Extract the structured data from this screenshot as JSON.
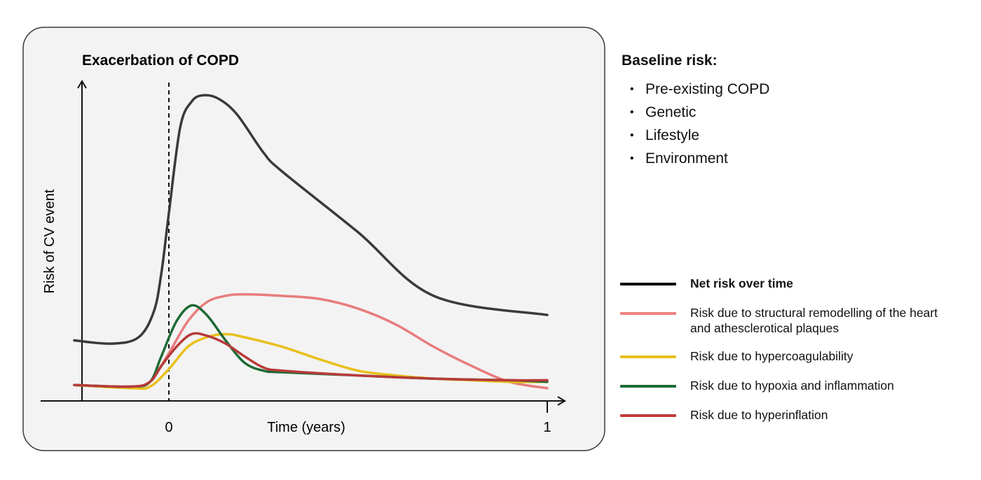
{
  "chart_data": {
    "type": "line",
    "title": "Exacerbation of COPD",
    "xlabel": "Time (years)",
    "ylabel": "Risk of CV event",
    "x_ticks": [
      "0",
      "1"
    ],
    "xlim": [
      -0.25,
      1.0
    ],
    "ylim": [
      0,
      1
    ],
    "event_marker": {
      "x": 0,
      "style": "dashed"
    },
    "series": [
      {
        "name": "Net risk over time",
        "color": "#3a3a3a",
        "points": [
          [
            -0.25,
            0.19
          ],
          [
            -0.15,
            0.18
          ],
          [
            -0.08,
            0.2
          ],
          [
            -0.04,
            0.28
          ],
          [
            -0.02,
            0.4
          ],
          [
            0,
            0.59
          ],
          [
            0.03,
            0.86
          ],
          [
            0.06,
            0.94
          ],
          [
            0.09,
            0.96
          ],
          [
            0.13,
            0.95
          ],
          [
            0.18,
            0.9
          ],
          [
            0.25,
            0.78
          ],
          [
            0.3,
            0.72
          ],
          [
            0.5,
            0.53
          ],
          [
            0.7,
            0.33
          ],
          [
            1.0,
            0.27
          ]
        ]
      },
      {
        "name": "Risk due to structural remodelling of the heart and athesclerotical plaques",
        "color": "#e87c7c",
        "points": [
          [
            -0.25,
            0.05
          ],
          [
            -0.1,
            0.045
          ],
          [
            -0.05,
            0.06
          ],
          [
            0,
            0.15
          ],
          [
            0.05,
            0.25
          ],
          [
            0.1,
            0.31
          ],
          [
            0.15,
            0.33
          ],
          [
            0.2,
            0.335
          ],
          [
            0.3,
            0.33
          ],
          [
            0.4,
            0.32
          ],
          [
            0.5,
            0.29
          ],
          [
            0.6,
            0.24
          ],
          [
            0.7,
            0.17
          ],
          [
            0.8,
            0.11
          ],
          [
            0.9,
            0.06
          ],
          [
            1.0,
            0.04
          ]
        ]
      },
      {
        "name": "Risk due to hypercoagulability",
        "color": "#e8c01a",
        "points": [
          [
            -0.25,
            0.05
          ],
          [
            -0.1,
            0.04
          ],
          [
            -0.05,
            0.045
          ],
          [
            0,
            0.1
          ],
          [
            0.05,
            0.17
          ],
          [
            0.1,
            0.2
          ],
          [
            0.15,
            0.21
          ],
          [
            0.2,
            0.2
          ],
          [
            0.3,
            0.17
          ],
          [
            0.4,
            0.13
          ],
          [
            0.5,
            0.095
          ],
          [
            0.6,
            0.08
          ],
          [
            0.7,
            0.07
          ],
          [
            0.8,
            0.065
          ],
          [
            0.9,
            0.06
          ],
          [
            1.0,
            0.06
          ]
        ]
      },
      {
        "name": "Risk due to hypoxia and inflammation",
        "color": "#1e6b35",
        "points": [
          [
            -0.25,
            0.05
          ],
          [
            -0.1,
            0.045
          ],
          [
            -0.05,
            0.06
          ],
          [
            -0.02,
            0.14
          ],
          [
            0.02,
            0.25
          ],
          [
            0.06,
            0.3
          ],
          [
            0.1,
            0.27
          ],
          [
            0.15,
            0.19
          ],
          [
            0.2,
            0.12
          ],
          [
            0.25,
            0.095
          ],
          [
            0.3,
            0.09
          ],
          [
            0.5,
            0.08
          ],
          [
            0.7,
            0.07
          ],
          [
            0.9,
            0.065
          ],
          [
            1.0,
            0.06
          ]
        ]
      },
      {
        "name": "Risk due to hyperinflation",
        "color": "#b83a3a",
        "points": [
          [
            -0.25,
            0.05
          ],
          [
            -0.1,
            0.045
          ],
          [
            -0.05,
            0.06
          ],
          [
            -0.02,
            0.11
          ],
          [
            0.02,
            0.17
          ],
          [
            0.06,
            0.21
          ],
          [
            0.1,
            0.205
          ],
          [
            0.15,
            0.18
          ],
          [
            0.2,
            0.14
          ],
          [
            0.25,
            0.105
          ],
          [
            0.3,
            0.095
          ],
          [
            0.5,
            0.08
          ],
          [
            0.7,
            0.07
          ],
          [
            0.9,
            0.065
          ],
          [
            1.0,
            0.065
          ]
        ]
      }
    ]
  },
  "baseline": {
    "title": "Baseline risk:",
    "items": [
      "Pre-existing COPD",
      "Genetic",
      "Lifestyle",
      "Environment"
    ]
  },
  "legend": [
    {
      "label": "Net risk over time",
      "color": "#000000",
      "bold": true
    },
    {
      "label": "Risk due to structural remodelling of the heart and athesclerotical plaques",
      "color": "#ee8080",
      "bold": false
    },
    {
      "label": "Risk due to hypercoagulability",
      "color": "#e8c01a",
      "bold": false
    },
    {
      "label": "Risk due to hypoxia and inflammation",
      "color": "#1e6b35",
      "bold": false
    },
    {
      "label": "Risk due to hyperinflation",
      "color": "#c03a3a",
      "bold": false
    }
  ]
}
